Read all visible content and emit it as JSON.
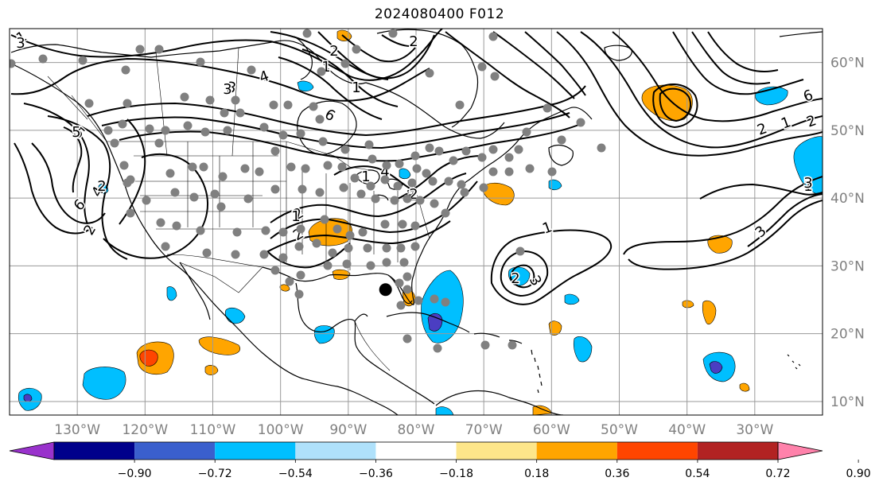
{
  "title": "2024080400 F012",
  "map": {
    "lon_range": [
      -140,
      -20
    ],
    "lat_range": [
      8,
      65
    ],
    "lon_labels": [
      "130°W",
      "120°W",
      "110°W",
      "100°W",
      "90°W",
      "80°W",
      "70°W",
      "60°W",
      "50°W",
      "40°W",
      "30°W"
    ],
    "lat_labels": [
      "60°N",
      "50°N",
      "40°N",
      "30°N",
      "20°N",
      "10°N"
    ],
    "contour_labels": [
      "1",
      "2",
      "3",
      "4",
      "5",
      "6",
      "1",
      "2",
      "3",
      "4",
      "6",
      "3",
      "2",
      "1",
      "2",
      "3",
      "1",
      "2",
      "3",
      "4",
      "2",
      "1",
      "2",
      "5",
      "3",
      "2",
      "1",
      "1",
      "2",
      "2",
      "1",
      "2",
      "3",
      "6"
    ],
    "shading_colors": {
      "neg_strong": "#4b3ec2",
      "neg_mid": "#00bfff",
      "neg_light": "#afe1fb",
      "pos_light": "#fde68a",
      "pos_mid": "#ffa500",
      "pos_strong": "#ff4500"
    },
    "center_marker": {
      "lon": -84.5,
      "lat": 26.5
    }
  },
  "colorbar": {
    "tick_labels": [
      "−0.90",
      "−0.72",
      "−0.54",
      "−0.36",
      "−0.18",
      "0.18",
      "0.36",
      "0.54",
      "0.72",
      "0.90"
    ],
    "colors": [
      "#9932cc",
      "#00008b",
      "#3a5fcd",
      "#00bfff",
      "#afe1fb",
      "#ffffff",
      "#fde68a",
      "#ffa500",
      "#ff4500",
      "#b22222",
      "#ff82ab"
    ]
  }
}
